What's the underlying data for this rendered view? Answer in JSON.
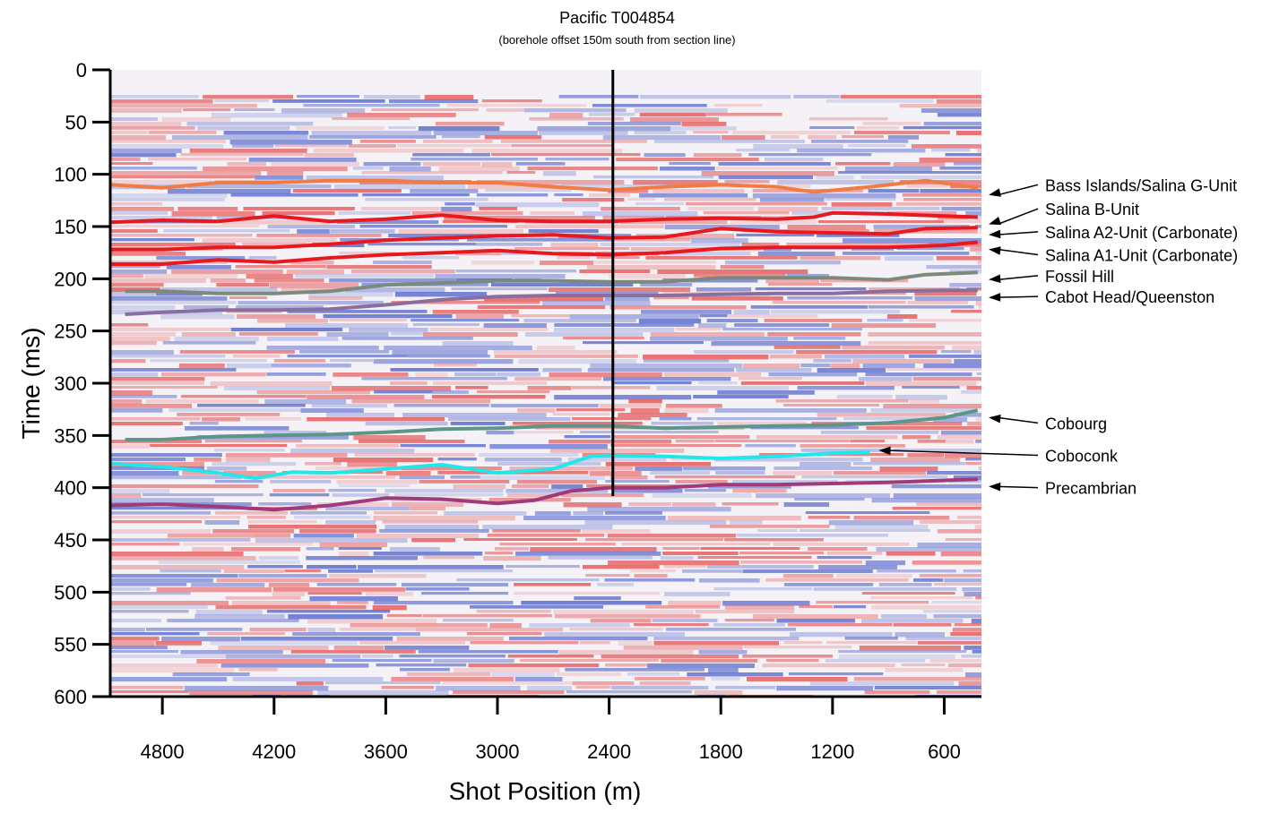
{
  "chart_data": {
    "type": "seismic-section",
    "title": "Pacific T004854",
    "subtitle": "(borehole offset 150m south from section line)",
    "xlabel": "Shot Position (m)",
    "ylabel": "Time (ms)",
    "x_reversed": true,
    "xlim": [
      5080,
      400
    ],
    "ylim": [
      0,
      600
    ],
    "y_reversed": true,
    "xticks": [
      4800,
      4200,
      3600,
      3000,
      2400,
      1800,
      1200,
      600
    ],
    "yticks": [
      0,
      50,
      100,
      150,
      200,
      250,
      300,
      350,
      400,
      450,
      500,
      550,
      600
    ],
    "borehole": {
      "x": 2380,
      "y_range": [
        0,
        408
      ],
      "color": "#000000"
    },
    "amplitude_colors": {
      "positive": "#e23b3b",
      "negative": "#3a4fc4"
    },
    "horizons": [
      {
        "name": "Bass Islands/Salina G-Unit",
        "color": "#f07b45",
        "points": [
          [
            5080,
            110
          ],
          [
            4800,
            113
          ],
          [
            4500,
            108
          ],
          [
            4200,
            108
          ],
          [
            3900,
            106
          ],
          [
            3600,
            106
          ],
          [
            3300,
            108
          ],
          [
            3000,
            108
          ],
          [
            2700,
            112
          ],
          [
            2400,
            115
          ],
          [
            2100,
            112
          ],
          [
            1800,
            110
          ],
          [
            1500,
            112
          ],
          [
            1300,
            117
          ],
          [
            1000,
            112
          ],
          [
            700,
            106
          ],
          [
            420,
            113
          ]
        ]
      },
      {
        "name": "Salina B-Unit",
        "color": "#e8181e",
        "points": [
          [
            5080,
            146
          ],
          [
            4800,
            144
          ],
          [
            4500,
            145
          ],
          [
            4200,
            140
          ],
          [
            3900,
            145
          ],
          [
            3600,
            143
          ],
          [
            3300,
            139
          ],
          [
            3000,
            144
          ],
          [
            2700,
            145
          ],
          [
            2400,
            145
          ],
          [
            2100,
            143
          ],
          [
            1800,
            142
          ],
          [
            1500,
            143
          ],
          [
            1300,
            141
          ],
          [
            1200,
            137
          ],
          [
            900,
            138
          ],
          [
            600,
            140
          ],
          [
            420,
            141
          ]
        ]
      },
      {
        "name": "Salina A2-Unit (Carbonate)",
        "color": "#e8181e",
        "points": [
          [
            5080,
            172
          ],
          [
            4800,
            172
          ],
          [
            4500,
            170
          ],
          [
            4200,
            170
          ],
          [
            3900,
            167
          ],
          [
            3600,
            163
          ],
          [
            3300,
            161
          ],
          [
            3000,
            159
          ],
          [
            2700,
            158
          ],
          [
            2400,
            161
          ],
          [
            2100,
            160
          ],
          [
            1800,
            152
          ],
          [
            1500,
            155
          ],
          [
            1200,
            156
          ],
          [
            900,
            157
          ],
          [
            700,
            152
          ],
          [
            420,
            151
          ]
        ]
      },
      {
        "name": "Salina A1-Unit (Carbonate)",
        "color": "#e8181e",
        "points": [
          [
            5080,
            186
          ],
          [
            4800,
            186
          ],
          [
            4500,
            182
          ],
          [
            4200,
            184
          ],
          [
            3900,
            180
          ],
          [
            3600,
            177
          ],
          [
            3300,
            175
          ],
          [
            3000,
            173
          ],
          [
            2700,
            176
          ],
          [
            2400,
            177
          ],
          [
            2100,
            175
          ],
          [
            1800,
            171
          ],
          [
            1500,
            170
          ],
          [
            1200,
            170
          ],
          [
            900,
            170
          ],
          [
            600,
            168
          ],
          [
            420,
            165
          ]
        ]
      },
      {
        "name": "Fossil Hill",
        "color": "#7c8a7d",
        "points": [
          [
            5000,
            212
          ],
          [
            4800,
            212
          ],
          [
            4500,
            214
          ],
          [
            4200,
            214
          ],
          [
            3900,
            212
          ],
          [
            3600,
            206
          ],
          [
            3300,
            204
          ],
          [
            3000,
            202
          ],
          [
            2700,
            202
          ],
          [
            2400,
            203
          ],
          [
            2100,
            203
          ],
          [
            1800,
            199
          ],
          [
            1500,
            199
          ],
          [
            1200,
            199
          ],
          [
            900,
            201
          ],
          [
            700,
            196
          ],
          [
            420,
            194
          ]
        ]
      },
      {
        "name": "Cabot Head/Queenston",
        "color": "#8a6f9e",
        "points": [
          [
            5000,
            234
          ],
          [
            4800,
            232
          ],
          [
            4500,
            230
          ],
          [
            4200,
            230
          ],
          [
            3900,
            229
          ],
          [
            3600,
            225
          ],
          [
            3300,
            220
          ],
          [
            3000,
            217
          ],
          [
            2700,
            216
          ],
          [
            2400,
            216
          ],
          [
            2100,
            216
          ],
          [
            1800,
            215
          ],
          [
            1500,
            214
          ],
          [
            1200,
            214
          ],
          [
            900,
            212
          ],
          [
            600,
            211
          ],
          [
            420,
            211
          ]
        ]
      },
      {
        "name": "Cobourg",
        "color": "#5d9688",
        "points": [
          [
            5000,
            354
          ],
          [
            4800,
            354
          ],
          [
            4500,
            351
          ],
          [
            4200,
            350
          ],
          [
            3900,
            349
          ],
          [
            3600,
            347
          ],
          [
            3300,
            344
          ],
          [
            3000,
            343
          ],
          [
            2700,
            341
          ],
          [
            2400,
            341
          ],
          [
            2100,
            343
          ],
          [
            1800,
            342
          ],
          [
            1500,
            341
          ],
          [
            1200,
            340
          ],
          [
            900,
            338
          ],
          [
            600,
            333
          ],
          [
            420,
            326
          ]
        ]
      },
      {
        "name": "Coboconk",
        "color": "#22e6ea",
        "points": [
          [
            5080,
            377
          ],
          [
            4800,
            380
          ],
          [
            4500,
            386
          ],
          [
            4300,
            391
          ],
          [
            4100,
            385
          ],
          [
            3900,
            386
          ],
          [
            3600,
            382
          ],
          [
            3300,
            378
          ],
          [
            3000,
            386
          ],
          [
            2700,
            382
          ],
          [
            2500,
            370
          ],
          [
            2400,
            369
          ],
          [
            2100,
            370
          ],
          [
            1800,
            372
          ],
          [
            1500,
            370
          ],
          [
            1200,
            367
          ],
          [
            1000,
            366
          ]
        ]
      },
      {
        "name": "Precambrian",
        "color": "#a03a7a",
        "points": [
          [
            5080,
            417
          ],
          [
            4800,
            416
          ],
          [
            4500,
            418
          ],
          [
            4200,
            421
          ],
          [
            3900,
            417
          ],
          [
            3600,
            410
          ],
          [
            3300,
            411
          ],
          [
            3000,
            415
          ],
          [
            2800,
            412
          ],
          [
            2600,
            403
          ],
          [
            2400,
            400
          ],
          [
            2100,
            400
          ],
          [
            1800,
            397
          ],
          [
            1500,
            397
          ],
          [
            1200,
            396
          ],
          [
            900,
            395
          ],
          [
            600,
            393
          ],
          [
            420,
            392
          ]
        ]
      }
    ],
    "legend_labels": [
      {
        "text": "Bass Islands/Salina G-Unit",
        "y": 110
      },
      {
        "text": "Salina B-Unit",
        "y": 133
      },
      {
        "text": "Salina A2-Unit (Carbonate)",
        "y": 155
      },
      {
        "text": "Salina A1-Unit (Carbonate)",
        "y": 177
      },
      {
        "text": "Fossil Hill",
        "y": 197
      },
      {
        "text": "Cabot Head/Queenston",
        "y": 217
      },
      {
        "text": "Cobourg",
        "y": 338
      },
      {
        "text": "Coboconk",
        "y": 369
      },
      {
        "text": "Precambrian",
        "y": 400
      }
    ]
  }
}
